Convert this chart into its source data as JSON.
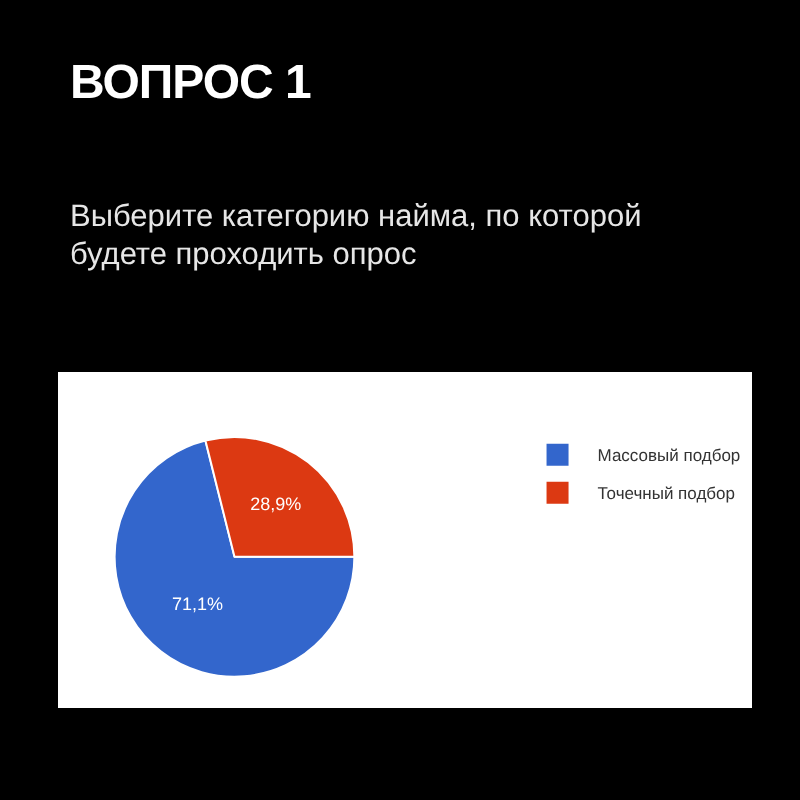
{
  "chart_data": {
    "type": "pie",
    "title": "ВОПРОС 1",
    "subtitle": "Выберите категорию найма, по которой будете проходить опрос",
    "categories": [
      "Массовый подбор",
      "Точечный подбор"
    ],
    "values": [
      71.1,
      28.9
    ],
    "colors": [
      "#3366cc",
      "#dc3912"
    ],
    "value_labels": [
      "71,1%",
      "28,9%"
    ],
    "legend": "top right"
  }
}
